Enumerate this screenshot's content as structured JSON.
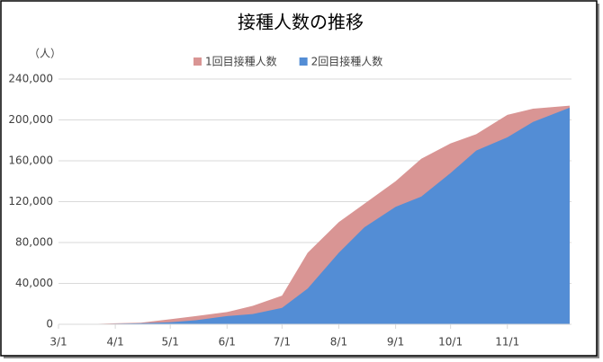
{
  "chart_data": {
    "type": "area",
    "title": "接種人数の推移",
    "y_label": "（人）",
    "x": [
      "3/1",
      "3/15",
      "4/1",
      "4/15",
      "5/1",
      "5/15",
      "6/1",
      "6/15",
      "7/1",
      "7/15",
      "8/1",
      "8/15",
      "9/1",
      "9/15",
      "10/1",
      "10/15",
      "11/1",
      "11/15",
      "12/5"
    ],
    "series": [
      {
        "name": "1回目接種人数",
        "color": "#d99594",
        "values": [
          0,
          0,
          1000,
          1500,
          5000,
          8000,
          12000,
          18000,
          28000,
          70000,
          100000,
          118000,
          140000,
          162000,
          177000,
          186000,
          205000,
          211000,
          214000
        ]
      },
      {
        "name": "2回目接種人数",
        "color": "#538dd5",
        "values": [
          0,
          0,
          500,
          1000,
          2000,
          4000,
          8000,
          10000,
          16000,
          35000,
          70000,
          95000,
          115000,
          125000,
          148000,
          170000,
          183000,
          198000,
          212000
        ]
      }
    ],
    "xlim": [
      "3/1",
      "12/6"
    ],
    "xticks": [
      "3/1",
      "4/1",
      "5/1",
      "6/1",
      "7/1",
      "8/1",
      "9/1",
      "10/1",
      "11/1"
    ],
    "ylim": [
      0,
      240000
    ],
    "yticks": [
      0,
      {
        "value": 40000,
        "label": "40,000"
      },
      {
        "value": 80000,
        "label": "80,000"
      },
      {
        "value": 120000,
        "label": "120,000"
      },
      {
        "value": 160000,
        "label": "160,000"
      },
      {
        "value": 200000,
        "label": "200,000"
      },
      {
        "value": 240000,
        "label": "240,000"
      }
    ],
    "grid": true,
    "legend": "top"
  }
}
